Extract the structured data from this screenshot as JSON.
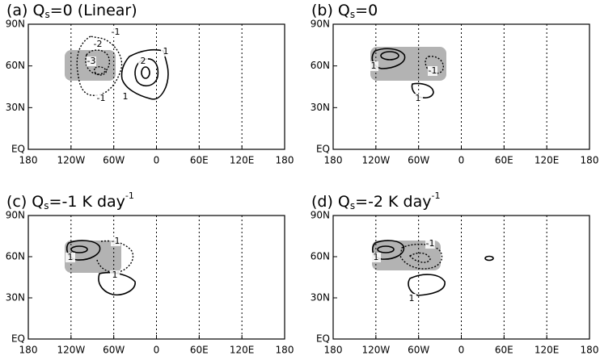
{
  "chart_data": [
    {
      "type": "contour",
      "title": {
        "prefix": "(a) Q",
        "sub": "s",
        "rest": "=0 (Linear)"
      },
      "xlim": [
        -180,
        180
      ],
      "xticks": [
        {
          "value": -180,
          "label": "180"
        },
        {
          "value": -120,
          "label": "120W"
        },
        {
          "value": -60,
          "label": "60W"
        },
        0,
        {
          "value": 60,
          "label": "60E"
        },
        {
          "value": 120,
          "label": "120E"
        },
        {
          "value": 180,
          "label": "180"
        }
      ],
      "ylim": [
        0,
        90
      ],
      "yticks": [
        {
          "value": 0,
          "label": "EQ"
        },
        {
          "value": 30,
          "label": "30N"
        },
        {
          "value": 60,
          "label": "60N"
        },
        {
          "value": 90,
          "label": "90N"
        }
      ],
      "grid": "x",
      "contour_labels": [
        -1,
        -2,
        -3,
        -1,
        2,
        1,
        1
      ]
    },
    {
      "type": "contour",
      "title": {
        "prefix": "(b) Q",
        "sub": "s",
        "rest": "=0"
      },
      "xlim": [
        -180,
        180
      ],
      "xticks": [
        {
          "value": -180,
          "label": "180"
        },
        {
          "value": -120,
          "label": "120W"
        },
        {
          "value": -60,
          "label": "60W"
        },
        0,
        {
          "value": 60,
          "label": "60E"
        },
        {
          "value": 120,
          "label": "120E"
        },
        {
          "value": 180,
          "label": "180"
        }
      ],
      "ylim": [
        0,
        90
      ],
      "yticks": [
        {
          "value": 0,
          "label": "EQ"
        },
        {
          "value": 30,
          "label": "30N"
        },
        {
          "value": 60,
          "label": "60N"
        },
        {
          "value": 90,
          "label": "90N"
        }
      ],
      "grid": "x",
      "contour_labels": [
        1,
        -1,
        1
      ]
    },
    {
      "type": "contour",
      "title": {
        "prefix": "(c) Q",
        "sub": "s",
        "rest": "=-1 K day",
        "sup": "-1"
      },
      "xlim": [
        -180,
        180
      ],
      "xticks": [
        {
          "value": -180,
          "label": "180"
        },
        {
          "value": -120,
          "label": "120W"
        },
        {
          "value": -60,
          "label": "60W"
        },
        0,
        {
          "value": 60,
          "label": "60E"
        },
        {
          "value": 120,
          "label": "120E"
        },
        {
          "value": 180,
          "label": "180"
        }
      ],
      "ylim": [
        0,
        90
      ],
      "yticks": [
        {
          "value": 0,
          "label": "EQ"
        },
        {
          "value": 30,
          "label": "30N"
        },
        {
          "value": 60,
          "label": "60N"
        },
        {
          "value": 90,
          "label": "90N"
        }
      ],
      "grid": "x",
      "contour_labels": [
        -1,
        1,
        1
      ]
    },
    {
      "type": "contour",
      "title": {
        "prefix": "(d) Q",
        "sub": "s",
        "rest": "=-2 K day",
        "sup": "-1"
      },
      "xlim": [
        -180,
        180
      ],
      "xticks": [
        {
          "value": -180,
          "label": "180"
        },
        {
          "value": -120,
          "label": "120W"
        },
        {
          "value": -60,
          "label": "60W"
        },
        0,
        {
          "value": 60,
          "label": "60E"
        },
        {
          "value": 120,
          "label": "120E"
        },
        {
          "value": 180,
          "label": "180"
        }
      ],
      "ylim": [
        0,
        90
      ],
      "yticks": [
        {
          "value": 0,
          "label": "EQ"
        },
        {
          "value": 30,
          "label": "30N"
        },
        {
          "value": 60,
          "label": "60N"
        },
        {
          "value": 90,
          "label": "90N"
        }
      ],
      "grid": "x",
      "contour_labels": [
        -1,
        1,
        1
      ]
    }
  ]
}
